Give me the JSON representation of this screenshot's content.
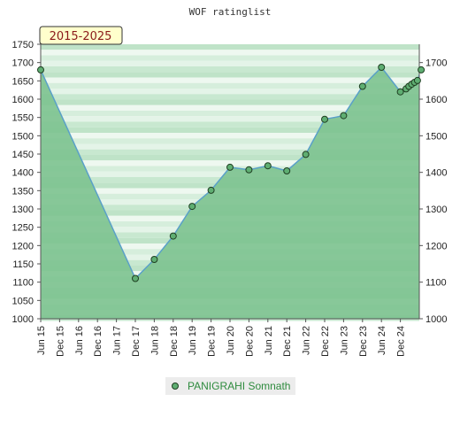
{
  "chart_data": {
    "type": "area",
    "title": "WOF ratinglist",
    "period_badge": "2015-2025",
    "ylim": [
      1000,
      1750
    ],
    "y_ticks_left": [
      "1000",
      "1050",
      "1100",
      "1150",
      "1200",
      "1250",
      "1300",
      "1350",
      "1400",
      "1450",
      "1500",
      "1550",
      "1600",
      "1650",
      "1700",
      "1750"
    ],
    "y_ticks_right": [
      "1000",
      "1100",
      "1200",
      "1300",
      "1400",
      "1500",
      "1600",
      "1700"
    ],
    "x_ticks": [
      "Jun 15",
      "Dec 15",
      "Jun 16",
      "Dec 16",
      "Jun 17",
      "Dec 17",
      "Jun 18",
      "Dec 18",
      "Jun 19",
      "Dec 19",
      "Jun 20",
      "Dec 20",
      "Jun 21",
      "Dec 21",
      "Jun 22",
      "Dec 22",
      "Jun 23",
      "Dec 23",
      "Jun 24",
      "Dec 24"
    ],
    "grid": "horizontal bands",
    "legend_position": "bottom",
    "colors": {
      "fill": "#7cc28f",
      "line": "#5aa0c8",
      "marker": "#5fae72",
      "badge_bg": "#ffffcc"
    },
    "series": [
      {
        "name": "PANIGRAHI Somnath",
        "x": [
          0,
          5,
          6,
          7,
          8,
          9,
          10,
          11,
          12,
          13,
          14,
          15,
          16,
          17,
          18,
          19,
          19.3,
          19.45,
          19.6,
          19.75,
          19.9,
          20.1
        ],
        "y": [
          1680,
          1110,
          1162,
          1226,
          1307,
          1351,
          1414,
          1407,
          1418,
          1404,
          1449,
          1545,
          1555,
          1635,
          1687,
          1620,
          1628,
          1635,
          1641,
          1646,
          1651,
          1680
        ]
      }
    ]
  }
}
